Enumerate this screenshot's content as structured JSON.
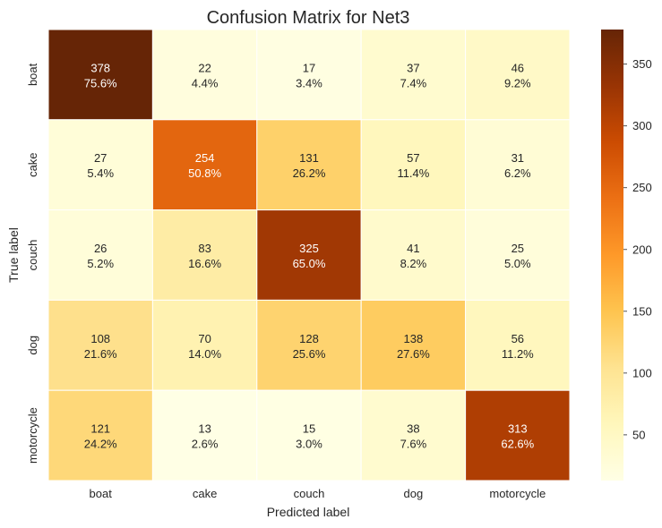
{
  "chart_data": {
    "type": "heatmap",
    "title": "Confusion Matrix for Net3",
    "xlabel": "Predicted label",
    "ylabel": "True label",
    "x_categories": [
      "boat",
      "cake",
      "couch",
      "dog",
      "motorcycle"
    ],
    "y_categories": [
      "boat",
      "cake",
      "couch",
      "dog",
      "motorcycle"
    ],
    "values": [
      [
        378,
        22,
        17,
        37,
        46
      ],
      [
        27,
        254,
        131,
        57,
        31
      ],
      [
        26,
        83,
        325,
        41,
        25
      ],
      [
        108,
        70,
        128,
        138,
        56
      ],
      [
        121,
        13,
        15,
        38,
        313
      ]
    ],
    "percent_labels": [
      [
        "75.6%",
        "4.4%",
        "3.4%",
        "7.4%",
        "9.2%"
      ],
      [
        "5.4%",
        "50.8%",
        "26.2%",
        "11.4%",
        "6.2%"
      ],
      [
        "5.2%",
        "16.6%",
        "65.0%",
        "8.2%",
        "5.0%"
      ],
      [
        "21.6%",
        "14.0%",
        "25.6%",
        "27.6%",
        "11.2%"
      ],
      [
        "24.2%",
        "2.6%",
        "3.0%",
        "7.6%",
        "62.6%"
      ]
    ],
    "colorbar": {
      "colormap": "YlOrBr",
      "vmin": 13,
      "vmax": 378,
      "ticks": [
        50,
        100,
        150,
        200,
        250,
        300,
        350
      ]
    },
    "colors": {
      "stops": [
        "#ffffe5",
        "#fff7bc",
        "#fee391",
        "#fec44f",
        "#fe9929",
        "#ec7014",
        "#cc4c02",
        "#993404",
        "#662506"
      ],
      "text_dark": "#262626",
      "text_light": "#ffffff",
      "grid_line": "#ffffff"
    }
  }
}
